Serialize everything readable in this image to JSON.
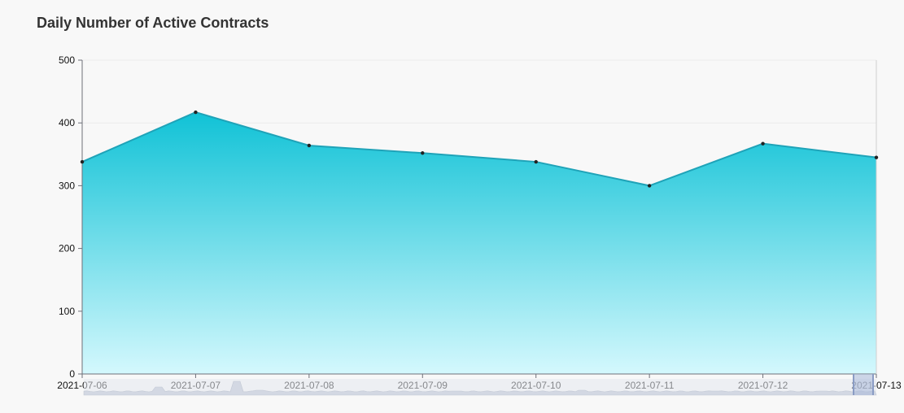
{
  "chart_title": "Daily Number of Active Contracts",
  "chart_data": {
    "type": "area",
    "title": "Daily Number of Active Contracts",
    "xlabel": "",
    "ylabel": "",
    "x": [
      "2021-07-06",
      "2021-07-07",
      "2021-07-08",
      "2021-07-09",
      "2021-07-10",
      "2021-07-11",
      "2021-07-12",
      "2021-07-13"
    ],
    "series": [
      {
        "values": [
          338,
          417,
          364,
          352,
          338,
          300,
          367,
          345
        ]
      }
    ],
    "ylim": [
      0,
      500
    ],
    "yticks": [
      0,
      100,
      200,
      300,
      400,
      500
    ],
    "grid": true,
    "legend": "none",
    "has_brush_slider": true
  },
  "colors": {
    "background": "#f8f8f8",
    "area_top": "#10c2d6",
    "area_bottom": "#d4f8fd",
    "line": "#1fa3b8",
    "point": "#222222",
    "axis": "#6e7079",
    "tick_text": "#111111",
    "slider_fill": "#e4e7ee",
    "slider_handle": "#a8b8d8"
  }
}
